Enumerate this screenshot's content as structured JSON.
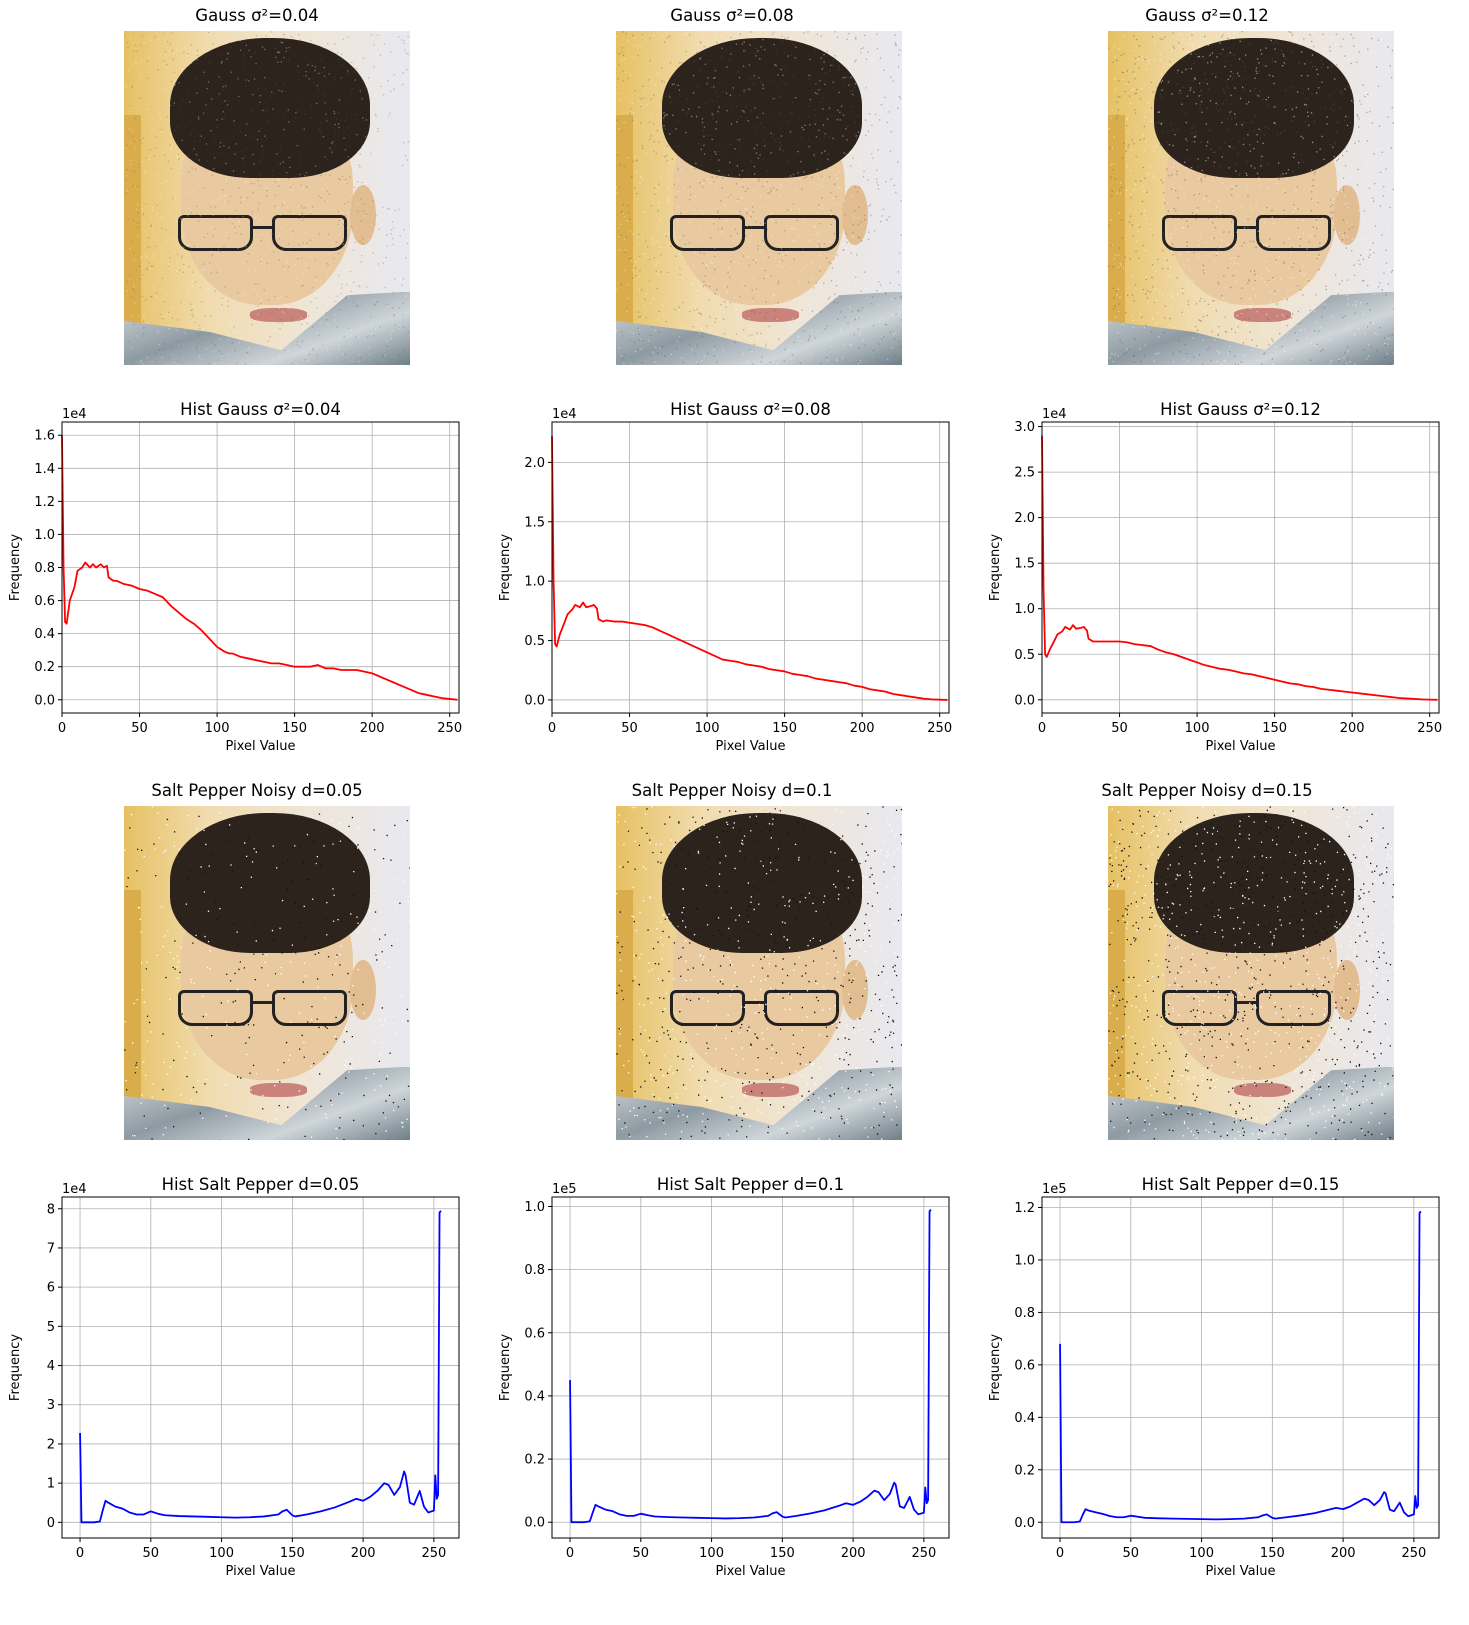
{
  "photos": [
    {
      "title": "Gauss σ²=0.04",
      "noise": "gauss",
      "level": 0.04
    },
    {
      "title": "Gauss σ²=0.08",
      "noise": "gauss",
      "level": 0.08
    },
    {
      "title": "Gauss σ²=0.12",
      "noise": "gauss",
      "level": 0.12
    },
    {
      "title": "Salt Pepper Noisy d=0.05",
      "noise": "saltpepper",
      "level": 0.05
    },
    {
      "title": "Salt Pepper Noisy d=0.1",
      "noise": "saltpepper",
      "level": 0.1
    },
    {
      "title": "Salt Pepper Noisy d=0.15",
      "noise": "saltpepper",
      "level": 0.15
    }
  ],
  "chart_data": [
    {
      "type": "line",
      "title": "Hist Gauss σ²=0.04",
      "xlabel": "Pixel Value",
      "ylabel": "Frequency",
      "color": "#ff0000",
      "offset_text": "1e4",
      "scale": 10000,
      "xlim": [
        0,
        256
      ],
      "ylim": [
        -0.08,
        1.68
      ],
      "grid": true,
      "xticks": [
        0,
        50,
        100,
        150,
        200,
        250
      ],
      "yticks": [
        0.0,
        0.2,
        0.4,
        0.6,
        0.8,
        1.0,
        1.2,
        1.4,
        1.6
      ],
      "ytick_labels": [
        "0.0",
        "0.2",
        "0.4",
        "0.6",
        "0.8",
        "1.0",
        "1.2",
        "1.4",
        "1.6"
      ],
      "series": [
        {
          "x": [
            0,
            1,
            2,
            3,
            5,
            8,
            10,
            13,
            15,
            18,
            20,
            22,
            25,
            27,
            29,
            30,
            33,
            35,
            40,
            45,
            50,
            55,
            60,
            65,
            70,
            75,
            80,
            85,
            90,
            95,
            100,
            105,
            108,
            110,
            115,
            120,
            125,
            130,
            135,
            140,
            145,
            150,
            155,
            160,
            165,
            170,
            175,
            180,
            185,
            190,
            195,
            200,
            205,
            210,
            215,
            220,
            225,
            230,
            235,
            240,
            245,
            250,
            255
          ],
          "y": [
            1.6,
            0.8,
            0.47,
            0.46,
            0.6,
            0.68,
            0.78,
            0.8,
            0.83,
            0.8,
            0.82,
            0.8,
            0.82,
            0.8,
            0.81,
            0.74,
            0.72,
            0.72,
            0.7,
            0.69,
            0.67,
            0.66,
            0.64,
            0.62,
            0.57,
            0.53,
            0.49,
            0.46,
            0.42,
            0.37,
            0.32,
            0.29,
            0.28,
            0.28,
            0.26,
            0.25,
            0.24,
            0.23,
            0.22,
            0.22,
            0.21,
            0.2,
            0.2,
            0.2,
            0.21,
            0.19,
            0.19,
            0.18,
            0.18,
            0.18,
            0.17,
            0.16,
            0.14,
            0.12,
            0.1,
            0.08,
            0.06,
            0.04,
            0.03,
            0.02,
            0.01,
            0.005,
            0.0
          ]
        }
      ]
    },
    {
      "type": "line",
      "title": "Hist Gauss σ²=0.08",
      "xlabel": "Pixel Value",
      "ylabel": "Frequency",
      "color": "#ff0000",
      "offset_text": "1e4",
      "scale": 10000,
      "xlim": [
        0,
        256
      ],
      "ylim": [
        -0.11,
        2.34
      ],
      "grid": true,
      "xticks": [
        0,
        50,
        100,
        150,
        200,
        250
      ],
      "yticks": [
        0.0,
        0.5,
        1.0,
        1.5,
        2.0
      ],
      "ytick_labels": [
        "0.0",
        "0.5",
        "1.0",
        "1.5",
        "2.0"
      ],
      "series": [
        {
          "x": [
            0,
            1,
            2,
            3,
            5,
            8,
            10,
            13,
            15,
            18,
            20,
            22,
            25,
            27,
            29,
            30,
            33,
            35,
            40,
            45,
            50,
            55,
            60,
            65,
            70,
            75,
            80,
            85,
            90,
            95,
            100,
            105,
            110,
            115,
            120,
            125,
            130,
            135,
            140,
            145,
            150,
            155,
            160,
            165,
            170,
            175,
            180,
            185,
            190,
            195,
            200,
            205,
            210,
            215,
            220,
            225,
            230,
            235,
            240,
            245,
            250,
            255
          ],
          "y": [
            2.22,
            1.0,
            0.47,
            0.45,
            0.55,
            0.65,
            0.72,
            0.76,
            0.8,
            0.78,
            0.82,
            0.78,
            0.79,
            0.8,
            0.77,
            0.68,
            0.66,
            0.67,
            0.66,
            0.66,
            0.65,
            0.64,
            0.63,
            0.61,
            0.58,
            0.55,
            0.52,
            0.49,
            0.46,
            0.43,
            0.4,
            0.37,
            0.34,
            0.33,
            0.32,
            0.3,
            0.29,
            0.28,
            0.26,
            0.25,
            0.24,
            0.22,
            0.21,
            0.2,
            0.18,
            0.17,
            0.16,
            0.15,
            0.14,
            0.12,
            0.11,
            0.09,
            0.08,
            0.07,
            0.05,
            0.04,
            0.03,
            0.02,
            0.01,
            0.005,
            0.002,
            0.0
          ]
        }
      ]
    },
    {
      "type": "line",
      "title": "Hist Gauss σ²=0.12",
      "xlabel": "Pixel Value",
      "ylabel": "Frequency",
      "color": "#ff0000",
      "offset_text": "1e4",
      "scale": 10000,
      "xlim": [
        0,
        256
      ],
      "ylim": [
        -0.145,
        3.05
      ],
      "grid": true,
      "xticks": [
        0,
        50,
        100,
        150,
        200,
        250
      ],
      "yticks": [
        0.0,
        0.5,
        1.0,
        1.5,
        2.0,
        2.5,
        3.0
      ],
      "ytick_labels": [
        "0.0",
        "0.5",
        "1.0",
        "1.5",
        "2.0",
        "2.5",
        "3.0"
      ],
      "series": [
        {
          "x": [
            0,
            1,
            2,
            3,
            5,
            8,
            10,
            13,
            15,
            18,
            20,
            22,
            25,
            27,
            29,
            30,
            33,
            35,
            40,
            45,
            50,
            55,
            60,
            65,
            70,
            75,
            80,
            85,
            90,
            95,
            100,
            105,
            110,
            115,
            120,
            125,
            130,
            135,
            140,
            145,
            150,
            155,
            160,
            165,
            170,
            175,
            180,
            185,
            190,
            195,
            200,
            205,
            210,
            215,
            220,
            225,
            230,
            235,
            240,
            245,
            250,
            255
          ],
          "y": [
            2.9,
            1.2,
            0.5,
            0.47,
            0.55,
            0.65,
            0.72,
            0.75,
            0.8,
            0.77,
            0.82,
            0.78,
            0.79,
            0.8,
            0.76,
            0.67,
            0.64,
            0.64,
            0.64,
            0.64,
            0.64,
            0.63,
            0.61,
            0.6,
            0.59,
            0.55,
            0.52,
            0.5,
            0.47,
            0.44,
            0.41,
            0.38,
            0.36,
            0.34,
            0.33,
            0.31,
            0.29,
            0.28,
            0.26,
            0.24,
            0.22,
            0.2,
            0.18,
            0.17,
            0.15,
            0.14,
            0.12,
            0.11,
            0.1,
            0.09,
            0.08,
            0.07,
            0.06,
            0.05,
            0.04,
            0.03,
            0.02,
            0.015,
            0.01,
            0.005,
            0.002,
            0.0
          ]
        }
      ]
    },
    {
      "type": "line",
      "title": "Hist Salt Pepper d=0.05",
      "xlabel": "Pixel Value",
      "ylabel": "Frequency",
      "color": "#0000ff",
      "offset_text": "1e4",
      "scale": 10000,
      "xlim": [
        -12.75,
        267.75
      ],
      "ylim": [
        -0.4,
        8.3
      ],
      "grid": true,
      "xticks": [
        0,
        50,
        100,
        150,
        200,
        250
      ],
      "yticks": [
        0,
        1,
        2,
        3,
        4,
        5,
        6,
        7,
        8
      ],
      "ytick_labels": [
        "0",
        "1",
        "2",
        "3",
        "4",
        "5",
        "6",
        "7",
        "8"
      ],
      "series": [
        {
          "x": [
            0,
            1,
            5,
            10,
            14,
            16,
            18,
            20,
            25,
            30,
            35,
            40,
            45,
            50,
            55,
            60,
            70,
            80,
            90,
            100,
            110,
            120,
            130,
            140,
            143,
            146,
            150,
            152,
            160,
            170,
            180,
            190,
            195,
            200,
            205,
            210,
            215,
            218,
            222,
            226,
            229,
            230,
            233,
            236,
            240,
            243,
            246,
            250,
            251,
            252,
            253,
            254,
            255
          ],
          "y": [
            2.28,
            0.0,
            0.0,
            0.0,
            0.02,
            0.3,
            0.55,
            0.5,
            0.4,
            0.35,
            0.25,
            0.2,
            0.2,
            0.28,
            0.22,
            0.18,
            0.16,
            0.15,
            0.14,
            0.13,
            0.12,
            0.13,
            0.15,
            0.2,
            0.28,
            0.32,
            0.18,
            0.15,
            0.2,
            0.28,
            0.38,
            0.52,
            0.6,
            0.55,
            0.65,
            0.8,
            1.0,
            0.95,
            0.7,
            0.9,
            1.3,
            1.2,
            0.5,
            0.45,
            0.8,
            0.4,
            0.25,
            0.3,
            1.2,
            0.6,
            0.7,
            7.9,
            7.95
          ]
        }
      ]
    },
    {
      "type": "line",
      "title": "Hist Salt Pepper d=0.1",
      "xlabel": "Pixel Value",
      "ylabel": "Frequency",
      "color": "#0000ff",
      "offset_text": "1e5",
      "scale": 100000,
      "xlim": [
        -12.75,
        267.75
      ],
      "ylim": [
        -0.05,
        1.03
      ],
      "grid": true,
      "xticks": [
        0,
        50,
        100,
        150,
        200,
        250
      ],
      "yticks": [
        0.0,
        0.2,
        0.4,
        0.6,
        0.8,
        1.0
      ],
      "ytick_labels": [
        "0.0",
        "0.2",
        "0.4",
        "0.6",
        "0.8",
        "1.0"
      ],
      "series": [
        {
          "x": [
            0,
            1,
            5,
            10,
            14,
            16,
            18,
            20,
            25,
            30,
            35,
            40,
            45,
            50,
            55,
            60,
            70,
            80,
            90,
            100,
            110,
            120,
            130,
            140,
            143,
            146,
            150,
            152,
            160,
            170,
            180,
            190,
            195,
            200,
            205,
            210,
            215,
            218,
            222,
            226,
            229,
            230,
            233,
            236,
            240,
            243,
            246,
            250,
            251,
            252,
            253,
            254,
            255
          ],
          "y": [
            0.45,
            0.0,
            0.0,
            0.0,
            0.003,
            0.03,
            0.055,
            0.05,
            0.04,
            0.035,
            0.025,
            0.02,
            0.02,
            0.027,
            0.022,
            0.018,
            0.016,
            0.015,
            0.014,
            0.013,
            0.012,
            0.013,
            0.015,
            0.02,
            0.028,
            0.032,
            0.018,
            0.015,
            0.02,
            0.028,
            0.038,
            0.052,
            0.06,
            0.055,
            0.065,
            0.08,
            0.1,
            0.095,
            0.07,
            0.09,
            0.125,
            0.12,
            0.05,
            0.045,
            0.08,
            0.04,
            0.025,
            0.03,
            0.11,
            0.06,
            0.07,
            0.985,
            0.99
          ]
        }
      ]
    },
    {
      "type": "line",
      "title": "Hist Salt Pepper d=0.15",
      "xlabel": "Pixel Value",
      "ylabel": "Frequency",
      "color": "#0000ff",
      "offset_text": "1e5",
      "scale": 100000,
      "xlim": [
        -12.75,
        267.75
      ],
      "ylim": [
        -0.06,
        1.24
      ],
      "grid": true,
      "xticks": [
        0,
        50,
        100,
        150,
        200,
        250
      ],
      "yticks": [
        0.0,
        0.2,
        0.4,
        0.6,
        0.8,
        1.0,
        1.2
      ],
      "ytick_labels": [
        "0.0",
        "0.2",
        "0.4",
        "0.6",
        "0.8",
        "1.0",
        "1.2"
      ],
      "series": [
        {
          "x": [
            0,
            1,
            5,
            10,
            14,
            16,
            18,
            20,
            25,
            30,
            35,
            40,
            45,
            50,
            55,
            60,
            70,
            80,
            90,
            100,
            110,
            120,
            130,
            140,
            143,
            146,
            150,
            152,
            160,
            170,
            180,
            190,
            195,
            200,
            205,
            210,
            215,
            218,
            222,
            226,
            229,
            230,
            233,
            236,
            240,
            243,
            246,
            250,
            251,
            252,
            253,
            254,
            255
          ],
          "y": [
            0.68,
            0.0,
            0.0,
            0.0,
            0.003,
            0.028,
            0.05,
            0.045,
            0.038,
            0.032,
            0.024,
            0.019,
            0.019,
            0.025,
            0.021,
            0.017,
            0.015,
            0.014,
            0.013,
            0.012,
            0.011,
            0.012,
            0.014,
            0.019,
            0.026,
            0.03,
            0.017,
            0.014,
            0.019,
            0.026,
            0.035,
            0.048,
            0.055,
            0.05,
            0.06,
            0.075,
            0.09,
            0.085,
            0.065,
            0.085,
            0.115,
            0.11,
            0.048,
            0.042,
            0.075,
            0.038,
            0.023,
            0.03,
            0.1,
            0.055,
            0.065,
            1.18,
            1.185
          ]
        }
      ]
    }
  ]
}
